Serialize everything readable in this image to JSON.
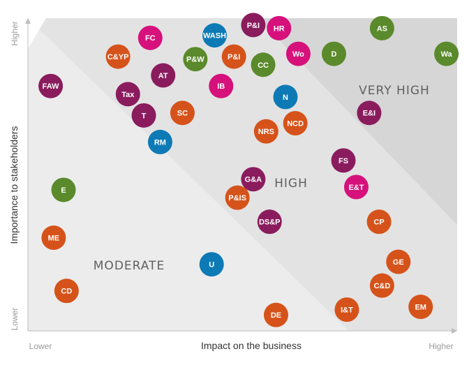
{
  "chart_data": {
    "type": "scatter",
    "xlabel": "Impact on the business",
    "ylabel": "Importance to stakeholders",
    "x_ticks": [
      "Lower",
      "Higher"
    ],
    "y_ticks": [
      "Lower",
      "Higher"
    ],
    "xlim": [
      0,
      100
    ],
    "ylim": [
      0,
      100
    ],
    "grid": false,
    "zones": [
      {
        "name": "MODERATE",
        "fill": "#ececec"
      },
      {
        "name": "HIGH",
        "fill": "#e3e3e3"
      },
      {
        "name": "VERY HIGH",
        "fill": "#d6d6d6"
      }
    ],
    "colors": {
      "orange": "#d5531a",
      "purple": "#8a1c5e",
      "pink": "#d6117b",
      "green": "#5a8a2b",
      "blue": "#0d7ab6"
    },
    "points": [
      {
        "label": "P&I",
        "x": 52.5,
        "y": 97.8,
        "color": "purple"
      },
      {
        "label": "HR",
        "x": 58.5,
        "y": 96.8,
        "color": "pink"
      },
      {
        "label": "AS",
        "x": 82.5,
        "y": 96.8,
        "color": "green"
      },
      {
        "label": "WASH",
        "x": 43.5,
        "y": 94.5,
        "color": "blue"
      },
      {
        "label": "FC",
        "x": 28.5,
        "y": 93.7,
        "color": "pink"
      },
      {
        "label": "C&YP",
        "x": 21.0,
        "y": 87.7,
        "color": "orange"
      },
      {
        "label": "P&W",
        "x": 39.0,
        "y": 86.9,
        "color": "green"
      },
      {
        "label": "P&I",
        "x": 48.0,
        "y": 87.7,
        "color": "orange"
      },
      {
        "label": "Wo",
        "x": 63.0,
        "y": 88.6,
        "color": "pink"
      },
      {
        "label": "D",
        "x": 71.3,
        "y": 88.6,
        "color": "green"
      },
      {
        "label": "Wa",
        "x": 97.5,
        "y": 88.6,
        "color": "green"
      },
      {
        "label": "CC",
        "x": 54.8,
        "y": 85.1,
        "color": "green"
      },
      {
        "label": "AT",
        "x": 31.5,
        "y": 81.7,
        "color": "purple"
      },
      {
        "label": "FAW",
        "x": 5.3,
        "y": 78.3,
        "color": "purple"
      },
      {
        "label": "IB",
        "x": 45.0,
        "y": 78.3,
        "color": "pink"
      },
      {
        "label": "Tax",
        "x": 23.3,
        "y": 75.7,
        "color": "purple"
      },
      {
        "label": "N",
        "x": 60.0,
        "y": 74.8,
        "color": "blue"
      },
      {
        "label": "SC",
        "x": 36.0,
        "y": 69.7,
        "color": "orange"
      },
      {
        "label": "E&I",
        "x": 79.5,
        "y": 69.7,
        "color": "purple"
      },
      {
        "label": "T",
        "x": 27.0,
        "y": 68.9,
        "color": "purple"
      },
      {
        "label": "NCD",
        "x": 62.3,
        "y": 66.4,
        "color": "orange"
      },
      {
        "label": "NRS",
        "x": 55.5,
        "y": 63.8,
        "color": "orange"
      },
      {
        "label": "RM",
        "x": 30.8,
        "y": 60.4,
        "color": "blue"
      },
      {
        "label": "FS",
        "x": 73.5,
        "y": 54.5,
        "color": "purple"
      },
      {
        "label": "G&A",
        "x": 52.5,
        "y": 48.5,
        "color": "purple"
      },
      {
        "label": "E&T",
        "x": 76.5,
        "y": 46.0,
        "color": "pink"
      },
      {
        "label": "E",
        "x": 8.3,
        "y": 45.1,
        "color": "green"
      },
      {
        "label": "P&IS",
        "x": 48.8,
        "y": 42.6,
        "color": "orange"
      },
      {
        "label": "DS&P",
        "x": 56.3,
        "y": 34.9,
        "color": "purple"
      },
      {
        "label": "CP",
        "x": 81.8,
        "y": 34.9,
        "color": "orange"
      },
      {
        "label": "ME",
        "x": 6.0,
        "y": 29.8,
        "color": "orange"
      },
      {
        "label": "U",
        "x": 42.8,
        "y": 21.3,
        "color": "blue"
      },
      {
        "label": "GE",
        "x": 86.3,
        "y": 22.1,
        "color": "orange"
      },
      {
        "label": "C&D",
        "x": 82.5,
        "y": 14.5,
        "color": "orange"
      },
      {
        "label": "CD",
        "x": 9.0,
        "y": 12.8,
        "color": "orange"
      },
      {
        "label": "EM",
        "x": 91.5,
        "y": 7.7,
        "color": "orange"
      },
      {
        "label": "I&T",
        "x": 74.3,
        "y": 6.8,
        "color": "orange"
      },
      {
        "label": "DE",
        "x": 57.8,
        "y": 5.1,
        "color": "orange"
      }
    ]
  }
}
